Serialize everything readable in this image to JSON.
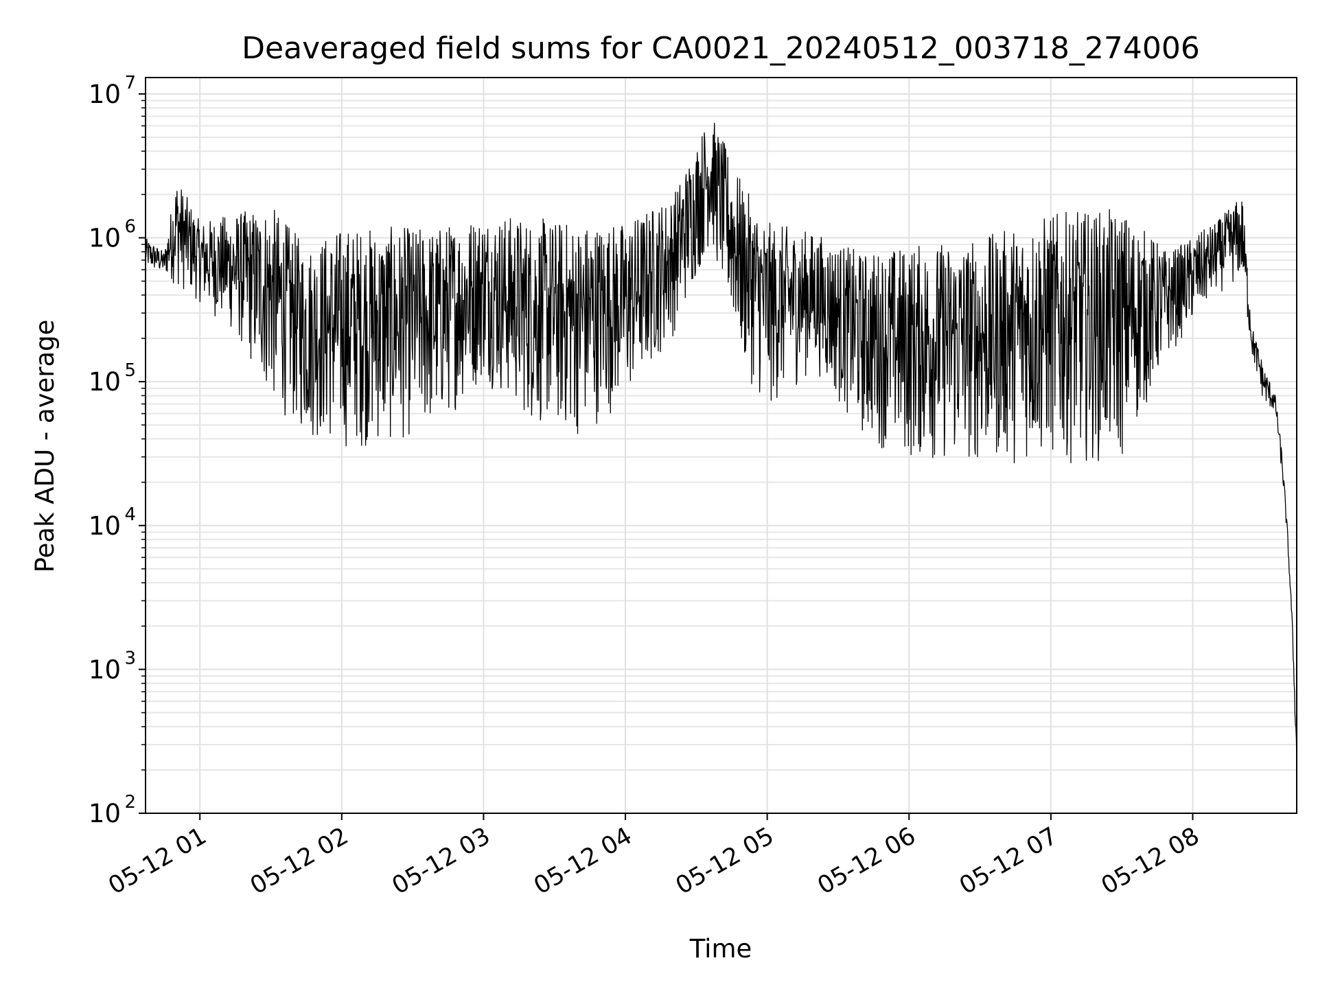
{
  "chart_data": {
    "type": "line",
    "title": "Deaveraged field sums for CA0021_20240512_003718_274006",
    "xlabel": "Time",
    "ylabel": "Peak ADU - average",
    "yscale": "log",
    "ylim": [
      100,
      13000000
    ],
    "xlim": [
      "2024-05-12 00:37",
      "2024-05-12 08:44"
    ],
    "grid": true,
    "legend": "none",
    "line_color": "#000000",
    "x_ticks": [
      {
        "value": "2024-05-12 01:00",
        "label": "05-12 01"
      },
      {
        "value": "2024-05-12 02:00",
        "label": "05-12 02"
      },
      {
        "value": "2024-05-12 03:00",
        "label": "05-12 03"
      },
      {
        "value": "2024-05-12 04:00",
        "label": "05-12 04"
      },
      {
        "value": "2024-05-12 05:00",
        "label": "05-12 05"
      },
      {
        "value": "2024-05-12 06:00",
        "label": "05-12 06"
      },
      {
        "value": "2024-05-12 07:00",
        "label": "05-12 07"
      },
      {
        "value": "2024-05-12 08:00",
        "label": "05-12 08"
      }
    ],
    "y_ticks": [
      {
        "value": 100,
        "mantissa": "10",
        "exp": "2"
      },
      {
        "value": 1000,
        "mantissa": "10",
        "exp": "3"
      },
      {
        "value": 10000,
        "mantissa": "10",
        "exp": "4"
      },
      {
        "value": 100000,
        "mantissa": "10",
        "exp": "5"
      },
      {
        "value": 1000000,
        "mantissa": "10",
        "exp": "6"
      },
      {
        "value": 10000000,
        "mantissa": "10",
        "exp": "7"
      }
    ],
    "envelope_points": [
      {
        "t": "2024-05-12 00:37",
        "hi": 1000000,
        "lo": 600000
      },
      {
        "t": "2024-05-12 00:45",
        "hi": 800000,
        "lo": 550000
      },
      {
        "t": "2024-05-12 00:50",
        "hi": 2700000,
        "lo": 450000
      },
      {
        "t": "2024-05-12 01:00",
        "hi": 1300000,
        "lo": 350000
      },
      {
        "t": "2024-05-12 01:15",
        "hi": 1500000,
        "lo": 200000
      },
      {
        "t": "2024-05-12 01:30",
        "hi": 1700000,
        "lo": 70000
      },
      {
        "t": "2024-05-12 01:45",
        "hi": 900000,
        "lo": 40000
      },
      {
        "t": "2024-05-12 02:00",
        "hi": 1200000,
        "lo": 33000
      },
      {
        "t": "2024-05-12 02:20",
        "hi": 1200000,
        "lo": 35000
      },
      {
        "t": "2024-05-12 02:40",
        "hi": 1200000,
        "lo": 45000
      },
      {
        "t": "2024-05-12 03:00",
        "hi": 1500000,
        "lo": 100000
      },
      {
        "t": "2024-05-12 03:20",
        "hi": 1400000,
        "lo": 50000
      },
      {
        "t": "2024-05-12 03:40",
        "hi": 1300000,
        "lo": 40000
      },
      {
        "t": "2024-05-12 04:00",
        "hi": 1300000,
        "lo": 70000
      },
      {
        "t": "2024-05-12 04:20",
        "hi": 2000000,
        "lo": 200000
      },
      {
        "t": "2024-05-12 04:36",
        "hi": 7500000,
        "lo": 900000
      },
      {
        "t": "2024-05-12 04:50",
        "hi": 2300000,
        "lo": 120000
      },
      {
        "t": "2024-05-12 05:00",
        "hi": 1300000,
        "lo": 60000
      },
      {
        "t": "2024-05-12 05:20",
        "hi": 1100000,
        "lo": 120000
      },
      {
        "t": "2024-05-12 05:40",
        "hi": 800000,
        "lo": 40000
      },
      {
        "t": "2024-05-12 06:00",
        "hi": 900000,
        "lo": 27000
      },
      {
        "t": "2024-05-12 06:30",
        "hi": 1000000,
        "lo": 26000
      },
      {
        "t": "2024-05-12 07:00",
        "hi": 1500000,
        "lo": 27000
      },
      {
        "t": "2024-05-12 07:30",
        "hi": 1600000,
        "lo": 27000
      },
      {
        "t": "2024-05-12 07:50",
        "hi": 800000,
        "lo": 150000
      },
      {
        "t": "2024-05-12 08:10",
        "hi": 1300000,
        "lo": 400000
      },
      {
        "t": "2024-05-12 08:21",
        "hi": 2000000,
        "lo": 500000
      },
      {
        "t": "2024-05-12 08:25",
        "hi": 250000,
        "lo": 150000
      },
      {
        "t": "2024-05-12 08:30",
        "hi": 130000,
        "lo": 70000
      },
      {
        "t": "2024-05-12 08:35",
        "hi": 80000,
        "lo": 60000
      },
      {
        "t": "2024-05-12 08:38",
        "hi": 30000,
        "lo": 20000
      },
      {
        "t": "2024-05-12 08:40",
        "hi": 10000,
        "lo": 8000
      },
      {
        "t": "2024-05-12 08:42",
        "hi": 2500,
        "lo": 2000
      },
      {
        "t": "2024-05-12 08:44",
        "hi": 300,
        "lo": 200
      }
    ]
  }
}
